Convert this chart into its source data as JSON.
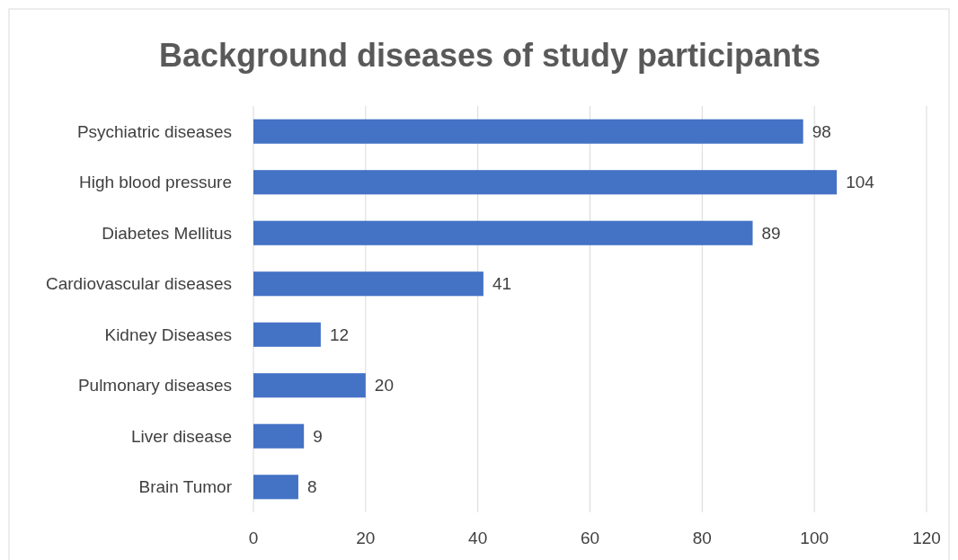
{
  "chart_data": {
    "type": "bar",
    "orientation": "horizontal",
    "title": "Background diseases of study participants",
    "categories": [
      "Psychiatric diseases",
      "High blood pressure",
      "Diabetes Mellitus",
      "Cardiovascular diseases",
      "Kidney Diseases",
      "Pulmonary diseases",
      "Liver disease",
      "Brain Tumor"
    ],
    "values": [
      98,
      104,
      89,
      41,
      12,
      20,
      9,
      8
    ],
    "color": "#4472c4",
    "xlim": [
      0,
      120
    ],
    "xticks": [
      0,
      20,
      40,
      60,
      80,
      100,
      120
    ],
    "grid": "x",
    "data_labels": true
  }
}
